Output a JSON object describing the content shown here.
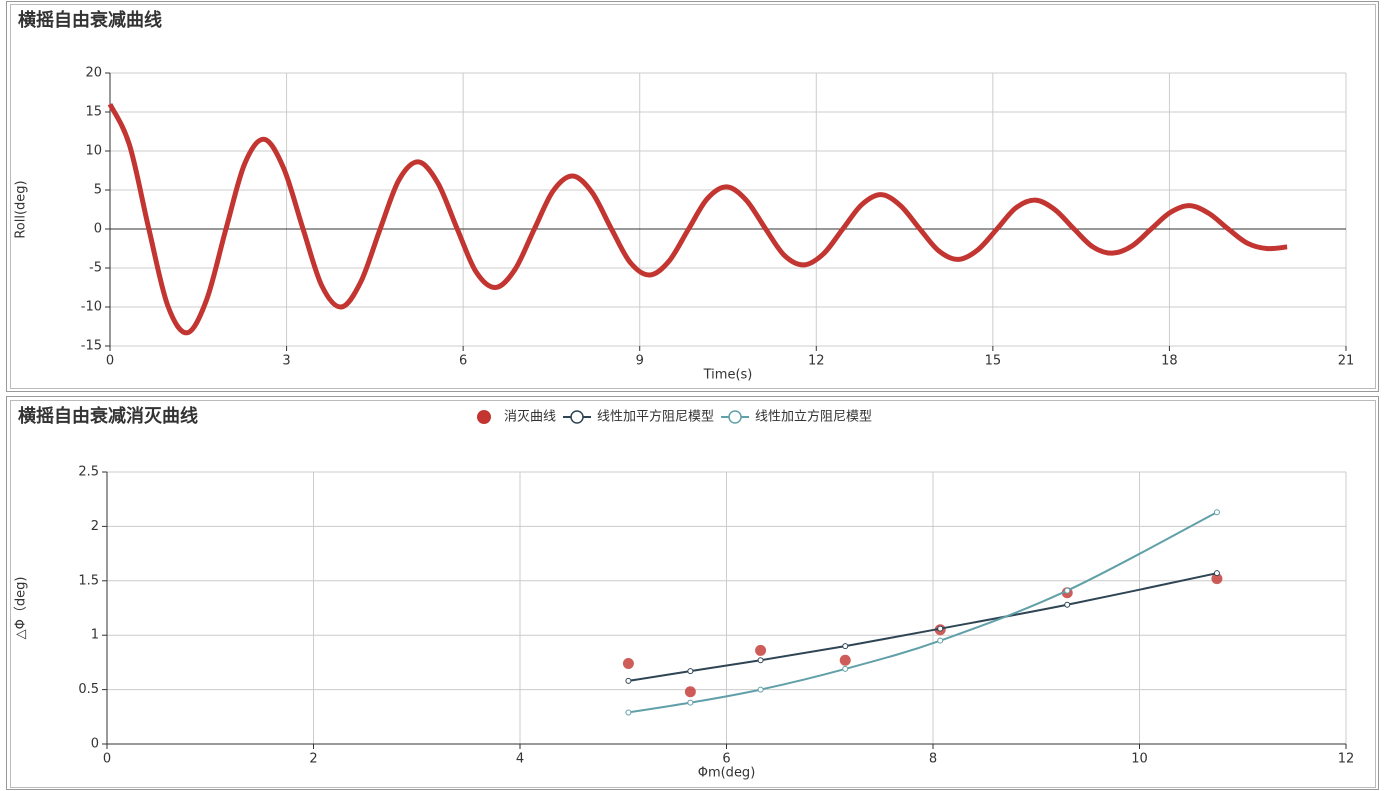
{
  "chart_data": [
    {
      "type": "line",
      "title": "横摇自由衰减曲线",
      "x_label": "Time(s)",
      "y_label": "Roll(deg)",
      "x": [
        0,
        0.33,
        0.66,
        0.98,
        1.31,
        1.64,
        1.97,
        2.29,
        2.62,
        2.95,
        3.28,
        3.6,
        3.93,
        4.26,
        4.59,
        4.91,
        5.24,
        5.57,
        5.9,
        6.22,
        6.55,
        6.88,
        7.21,
        7.53,
        7.86,
        8.19,
        8.52,
        8.84,
        9.17,
        9.5,
        9.83,
        10.15,
        10.48,
        10.81,
        11.14,
        11.46,
        11.79,
        12.12,
        12.45,
        12.77,
        13.1,
        13.43,
        13.76,
        14.08,
        14.41,
        14.74,
        15.07,
        15.39,
        15.72,
        16.05,
        16.38,
        16.7,
        17.03,
        17.36,
        17.69,
        18.01,
        18.34,
        18.67,
        19.0,
        19.32,
        19.65,
        20
      ],
      "series": [
        {
          "name": "Roll",
          "color": "#c23531",
          "values": [
            16,
            10.8,
            0,
            -9.8,
            -13.3,
            -9.1,
            0,
            8.4,
            11.5,
            7.8,
            0,
            -7.3,
            -10,
            -6.8,
            0,
            6.3,
            8.6,
            5.9,
            0,
            -5.5,
            -7.5,
            -5.2,
            0,
            4.9,
            6.8,
            4.7,
            0,
            -4.3,
            -5.9,
            -4.1,
            0,
            3.9,
            5.4,
            3.7,
            0,
            -3.4,
            -4.6,
            -3.2,
            0,
            3.1,
            4.4,
            3.0,
            0,
            -2.8,
            -3.9,
            -2.7,
            0,
            2.7,
            3.7,
            2.5,
            0,
            -2.3,
            -3.1,
            -2.2,
            0,
            2.1,
            3.0,
            2.0,
            0,
            -1.8,
            -2.5,
            -2.3
          ]
        }
      ],
      "xlim": [
        0,
        21
      ],
      "xticks": [
        0,
        3,
        6,
        9,
        12,
        15,
        18,
        21
      ],
      "ylim": [
        -15,
        20
      ],
      "yticks": [
        -15,
        -10,
        -5,
        0,
        5,
        10,
        15,
        20
      ],
      "grid": true
    },
    {
      "type": "line",
      "title": "横摇自由衰减消灭曲线",
      "x_label": "Φm(deg)",
      "y_label": "△Φ（deg)",
      "legend": "top",
      "x": [
        5.05,
        5.65,
        6.33,
        7.15,
        8.07,
        9.3,
        10.75
      ],
      "series": [
        {
          "name": "消灭曲线",
          "type": "scatter",
          "color": "#c23531",
          "values": [
            0.74,
            0.48,
            0.86,
            0.77,
            1.05,
            1.39,
            1.52
          ]
        },
        {
          "name": "线性加平方阻尼模型",
          "type": "line",
          "color": "#2f4554",
          "values": [
            0.58,
            0.67,
            0.77,
            0.9,
            1.06,
            1.28,
            1.57
          ]
        },
        {
          "name": "线性加立方阻尼模型",
          "type": "line",
          "color": "#61a0a8",
          "values": [
            0.29,
            0.38,
            0.5,
            0.69,
            0.95,
            1.41,
            2.13
          ]
        }
      ],
      "xlim": [
        0,
        12
      ],
      "xticks": [
        0,
        2,
        4,
        6,
        8,
        10,
        12
      ],
      "ylim": [
        0,
        2.5
      ],
      "yticks": [
        0,
        0.5,
        1,
        1.5,
        2,
        2.5
      ],
      "grid": true
    }
  ]
}
